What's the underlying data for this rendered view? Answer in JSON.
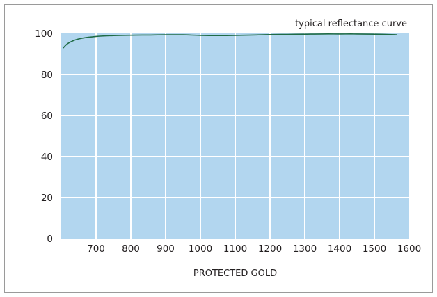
{
  "chart_data": {
    "type": "line",
    "title": "typical reflectance curve",
    "xlabel": "PROTECTED GOLD",
    "ylabel": "",
    "xlim": [
      600,
      1600
    ],
    "ylim": [
      0,
      100
    ],
    "x_ticks": [
      700,
      800,
      900,
      1000,
      1100,
      1200,
      1300,
      1400,
      1500,
      1600
    ],
    "y_ticks": [
      0,
      20,
      40,
      60,
      80,
      100
    ],
    "grid": true,
    "legend": "none",
    "line_color": "#1f6b45",
    "plot_background": "#b2d6ef",
    "series": [
      {
        "x": [
          605,
          620,
          650,
          700,
          750,
          800,
          850,
          900,
          950,
          1000,
          1050,
          1100,
          1150,
          1200,
          1250,
          1300,
          1350,
          1400,
          1450,
          1500,
          1550,
          1565
        ],
        "values": [
          92.8,
          95.2,
          97.3,
          98.5,
          98.9,
          99.1,
          99.2,
          99.3,
          99.3,
          99.0,
          98.9,
          99.0,
          99.2,
          99.4,
          99.5,
          99.6,
          99.7,
          99.7,
          99.7,
          99.6,
          99.4,
          99.3
        ]
      }
    ]
  }
}
